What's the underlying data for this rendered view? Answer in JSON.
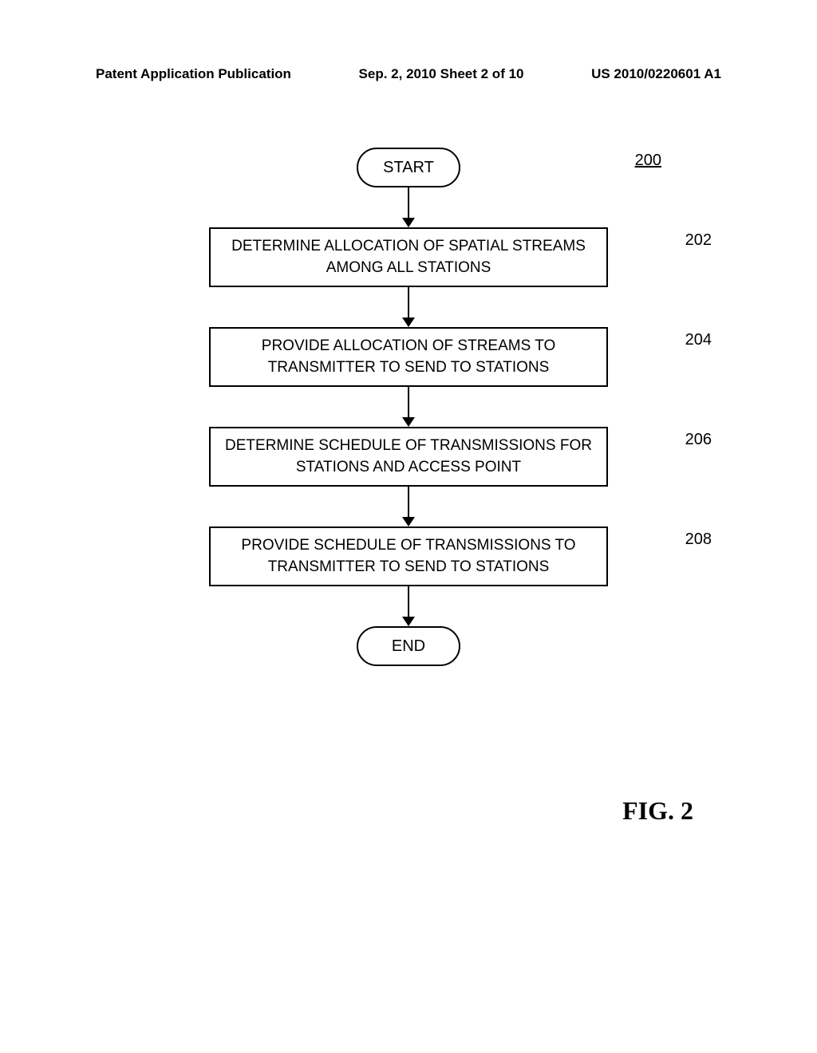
{
  "header": {
    "left": "Patent Application Publication",
    "center": "Sep. 2, 2010  Sheet 2 of 10",
    "right": "US 2010/0220601 A1"
  },
  "flowchart": {
    "ref_number": "200",
    "start_label": "START",
    "end_label": "END",
    "steps": [
      {
        "label": "202",
        "text": "DETERMINE ALLOCATION OF SPATIAL STREAMS AMONG ALL STATIONS"
      },
      {
        "label": "204",
        "text": "PROVIDE ALLOCATION OF STREAMS TO TRANSMITTER TO SEND TO STATIONS"
      },
      {
        "label": "206",
        "text": "DETERMINE SCHEDULE OF TRANSMISSIONS FOR STATIONS AND ACCESS POINT"
      },
      {
        "label": "208",
        "text": "PROVIDE SCHEDULE OF TRANSMISSIONS TO TRANSMITTER TO SEND TO STATIONS"
      }
    ]
  },
  "figure_label": "FIG. 2",
  "styling": {
    "background_color": "#ffffff",
    "border_color": "#000000",
    "text_color": "#000000",
    "terminal_width": 130,
    "terminal_height": 50,
    "terminal_border_radius": 25,
    "process_width": 500,
    "process_height": 75,
    "process_fontsize": 19,
    "label_fontsize": 20,
    "header_fontsize": 17,
    "figure_fontsize": 32,
    "arrow_height": 50,
    "border_width": 2
  }
}
